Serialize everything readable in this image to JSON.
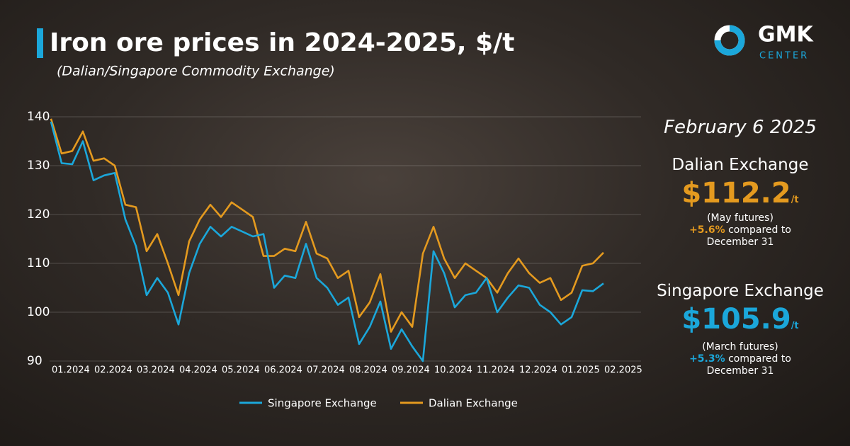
{
  "chart_data": {
    "type": "line",
    "title": "Iron ore prices in 2024-2025, $/t",
    "subtitle": "(Dalian/Singapore Commodity Exchange)",
    "categories": [
      "01.2024",
      null,
      null,
      null,
      "02.2024",
      null,
      null,
      null,
      "03.2024",
      null,
      null,
      null,
      "04.2024",
      null,
      null,
      null,
      "05.2024",
      null,
      null,
      null,
      "06.2024",
      null,
      null,
      null,
      "07.2024",
      null,
      null,
      null,
      "08.2024",
      null,
      null,
      null,
      "09.2024",
      null,
      null,
      null,
      "10.2024",
      null,
      null,
      null,
      "11.2024",
      null,
      null,
      null,
      "12.2024",
      null,
      null,
      null,
      "01.2025",
      null,
      null,
      null,
      "02.2025"
    ],
    "series": [
      {
        "name": "Singapore Exchange",
        "color": "#1ba7da",
        "values": [
          139,
          130.5,
          130.3,
          135,
          127,
          128,
          128.5,
          119,
          113.5,
          103.5,
          107,
          104,
          97.5,
          108,
          114,
          117.5,
          115.5,
          117.5,
          116.5,
          115.5,
          116,
          105,
          107.5,
          107,
          114,
          107,
          105,
          101.5,
          103,
          93.5,
          97,
          102.2,
          92.5,
          96.5,
          93,
          90,
          112.5,
          108,
          101,
          103.5,
          104,
          107,
          100,
          103,
          105.5,
          105,
          101.5,
          100,
          97.5,
          99,
          104.5,
          104.3,
          105.9
        ]
      },
      {
        "name": "Dalian Exchange",
        "color": "#e49a1f",
        "values": [
          139.6,
          132.5,
          133,
          137,
          131,
          131.5,
          130,
          122,
          121.5,
          112.5,
          116,
          110,
          103.5,
          114.5,
          119,
          122,
          119.5,
          122.5,
          121,
          119.5,
          111.5,
          111.5,
          113,
          112.5,
          118.5,
          112,
          111,
          107,
          108.5,
          99,
          102,
          107.8,
          96,
          100,
          97,
          112,
          117.5,
          111,
          107,
          110,
          108.5,
          107,
          104,
          108,
          111,
          108,
          106,
          107,
          102.5,
          104,
          109.5,
          110,
          112.2
        ]
      }
    ],
    "ylim": [
      90,
      140
    ],
    "yticks": [
      90,
      100,
      110,
      120,
      130,
      140
    ],
    "grid": true
  },
  "logo": {
    "name": "GMK",
    "sub": "CENTER"
  },
  "panel": {
    "date": "February 6 2025",
    "dalian": {
      "label": "Dalian Exchange",
      "price": "$112.2",
      "unit": "/t",
      "note": "(May futures)",
      "change": "+5.6%",
      "change_text": "compared to",
      "change_date": "December 31"
    },
    "singapore": {
      "label": "Singapore Exchange",
      "price": "$105.9",
      "unit": "/t",
      "note": "(March futures)",
      "change": "+5.3%",
      "change_text": "compared to",
      "change_date": "December 31"
    }
  }
}
